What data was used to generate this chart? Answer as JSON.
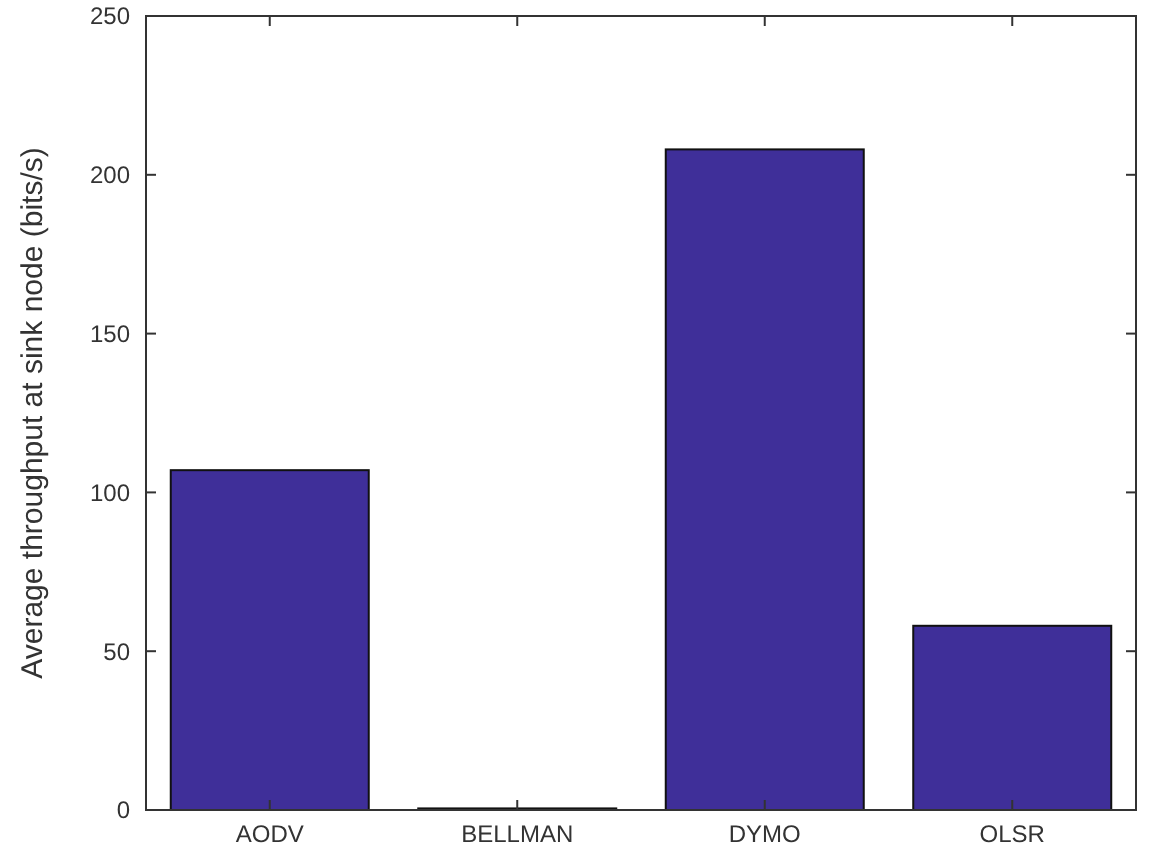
{
  "chart_data": {
    "type": "bar",
    "ylabel": "Average throughput at sink node (bits/s)",
    "categories": [
      "AODV",
      "BELLMAN",
      "DYMO",
      "OLSR"
    ],
    "values": [
      107,
      0.5,
      208,
      58
    ],
    "color": "#3f2f99",
    "ylim": [
      0,
      250
    ],
    "yticks": [
      0,
      50,
      100,
      150,
      200,
      250
    ],
    "grid": false
  }
}
